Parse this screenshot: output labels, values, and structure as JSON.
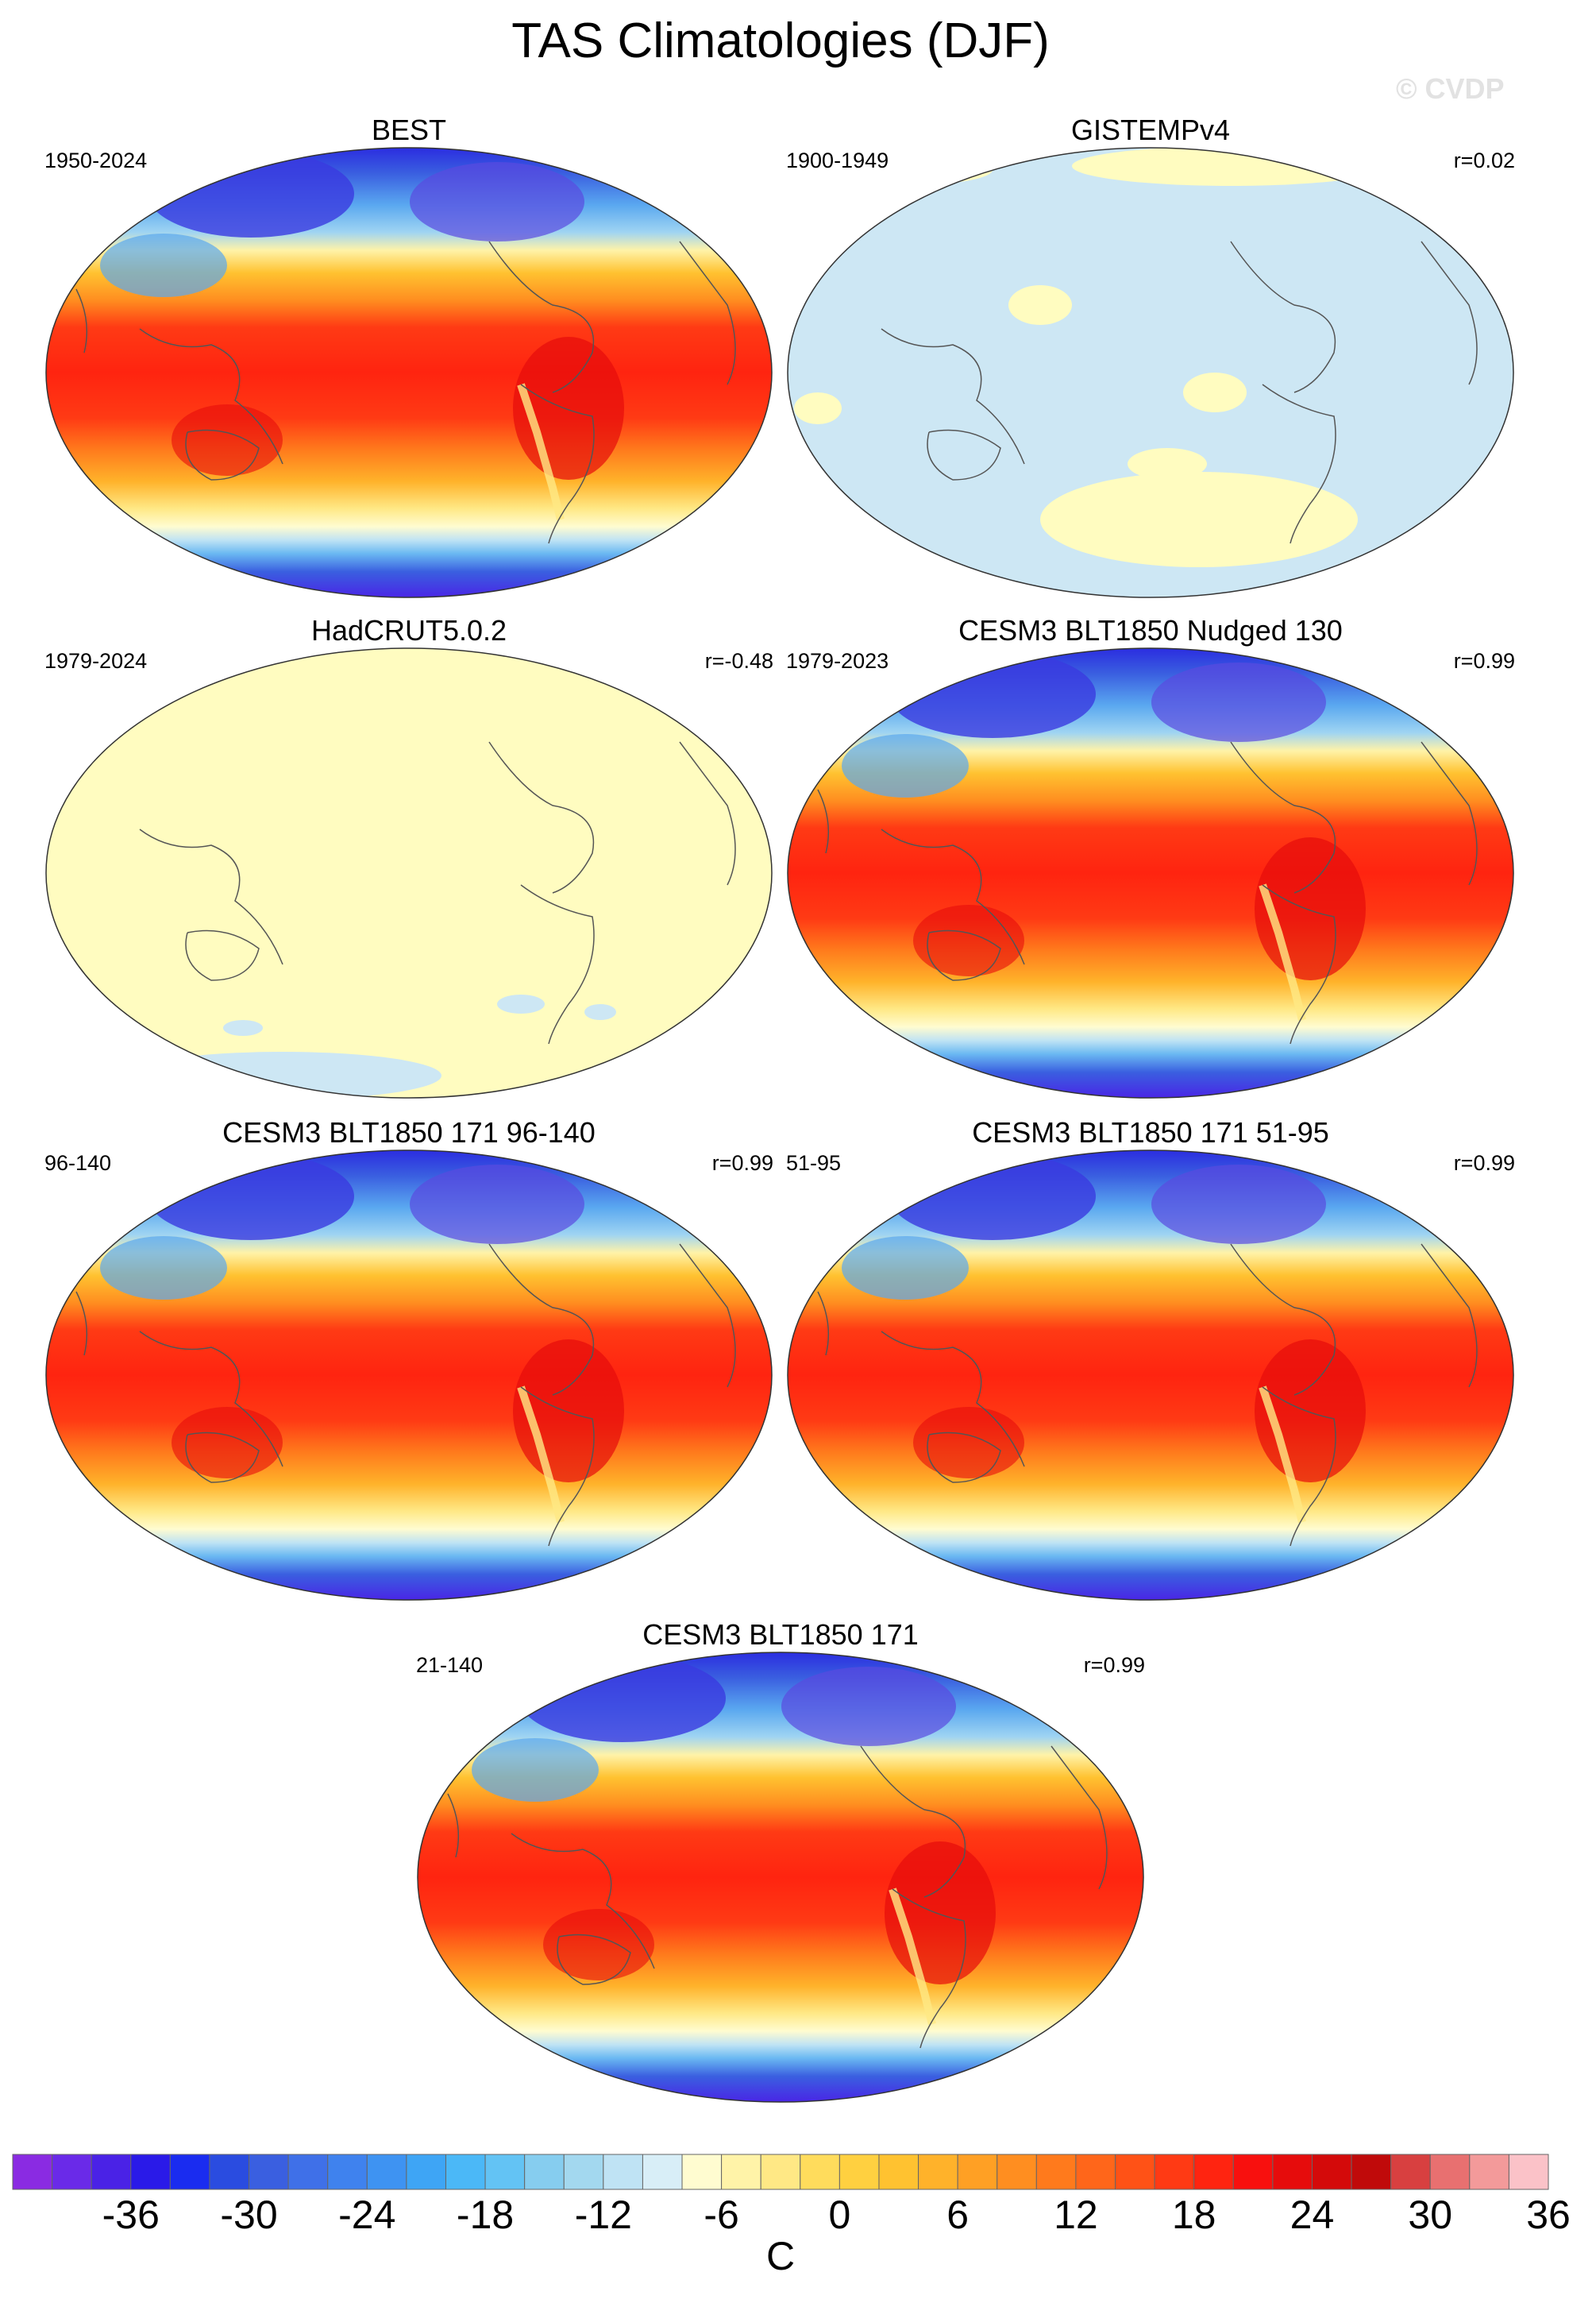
{
  "title": "TAS Climatologies (DJF)",
  "watermark": "© CVDP",
  "panels": [
    {
      "name": "BEST",
      "left": "1950-2024",
      "right": "",
      "fill": "full"
    },
    {
      "name": "GISTEMPv4",
      "left": "1900-1949",
      "right": "r=0.02",
      "fill": "pale-blue"
    },
    {
      "name": "HadCRUT5.0.2",
      "left": "1979-2024",
      "right": "r=-0.48",
      "fill": "pale-yellow"
    },
    {
      "name": "CESM3 BLT1850 Nudged 130",
      "left": "1979-2023",
      "right": "r=0.99",
      "fill": "full"
    },
    {
      "name": "CESM3 BLT1850 171 96-140",
      "left": "96-140",
      "right": "r=0.99",
      "fill": "full"
    },
    {
      "name": "CESM3 BLT1850 171 51-95",
      "left": "51-95",
      "right": "r=0.99",
      "fill": "full"
    },
    {
      "name": "CESM3 BLT1850 171",
      "left": "21-140",
      "right": "r=0.99",
      "fill": "full"
    }
  ],
  "colorbar": {
    "unit": "C",
    "tick_labels": [
      "-36",
      "-30",
      "-24",
      "-18",
      "-12",
      "-6",
      "0",
      "6",
      "12",
      "18",
      "24",
      "30",
      "36"
    ],
    "colors": [
      "#8a2be2",
      "#6a2ae8",
      "#4a22e6",
      "#2a1ae8",
      "#1a2cf0",
      "#2a4ce0",
      "#3a5fe0",
      "#3f70e8",
      "#3f82ee",
      "#3e93f2",
      "#3ea5f5",
      "#4bb8f7",
      "#63c3f4",
      "#86cdef",
      "#a3d8ef",
      "#bfe3f4",
      "#d8eef7",
      "#fffcd0",
      "#fff3a8",
      "#ffe885",
      "#ffdc5c",
      "#ffd040",
      "#ffc230",
      "#ffb22a",
      "#ffa024",
      "#ff8e20",
      "#ff7a1c",
      "#ff661a",
      "#ff5216",
      "#ff3a14",
      "#ff2410",
      "#f8100e",
      "#e60c0c",
      "#d40a0a",
      "#c00a0a",
      "#d84040",
      "#e87070",
      "#f39a9a",
      "#fbc2c8"
    ]
  }
}
